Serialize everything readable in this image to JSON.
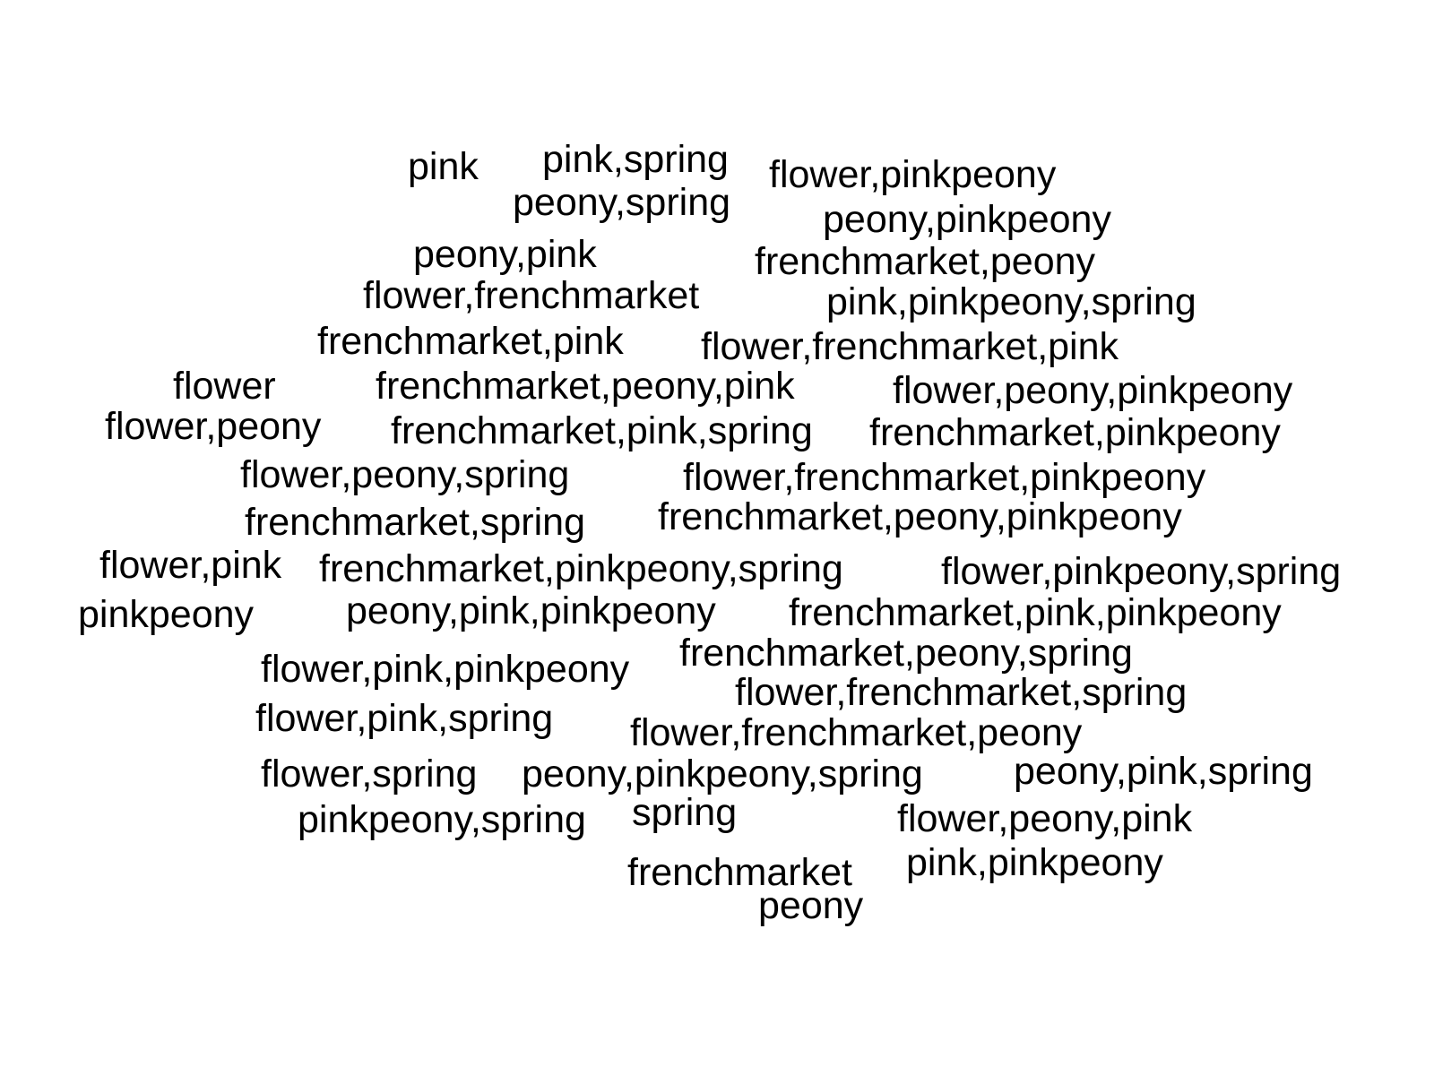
{
  "text_color": "#000000",
  "background_color": "#ffffff",
  "words": [
    "pink",
    "pink,spring",
    "flower,pinkpeony",
    "peony,spring",
    "peony,pinkpeony",
    "peony,pink",
    "frenchmarket,peony",
    "flower,frenchmarket",
    "pink,pinkpeony,spring",
    "frenchmarket,pink",
    "flower,frenchmarket,pink",
    "flower",
    "frenchmarket,peony,pink",
    "flower,peony,pinkpeony",
    "flower,peony",
    "frenchmarket,pink,spring",
    "frenchmarket,pinkpeony",
    "flower,peony,spring",
    "flower,frenchmarket,pinkpeony",
    "frenchmarket,spring",
    "frenchmarket,peony,pinkpeony",
    "flower,pink",
    "frenchmarket,pinkpeony,spring",
    "flower,pinkpeony,spring",
    "pinkpeony",
    "peony,pink,pinkpeony",
    "frenchmarket,pink,pinkpeony",
    "flower,pink,pinkpeony",
    "frenchmarket,peony,spring",
    "flower,frenchmarket,spring",
    "flower,pink,spring",
    "flower,frenchmarket,peony",
    "flower,spring",
    "peony,pinkpeony,spring",
    "peony,pink,spring",
    "pinkpeony,spring",
    "spring",
    "flower,peony,pink",
    "frenchmarket",
    "pink,pinkpeony",
    "peony"
  ]
}
